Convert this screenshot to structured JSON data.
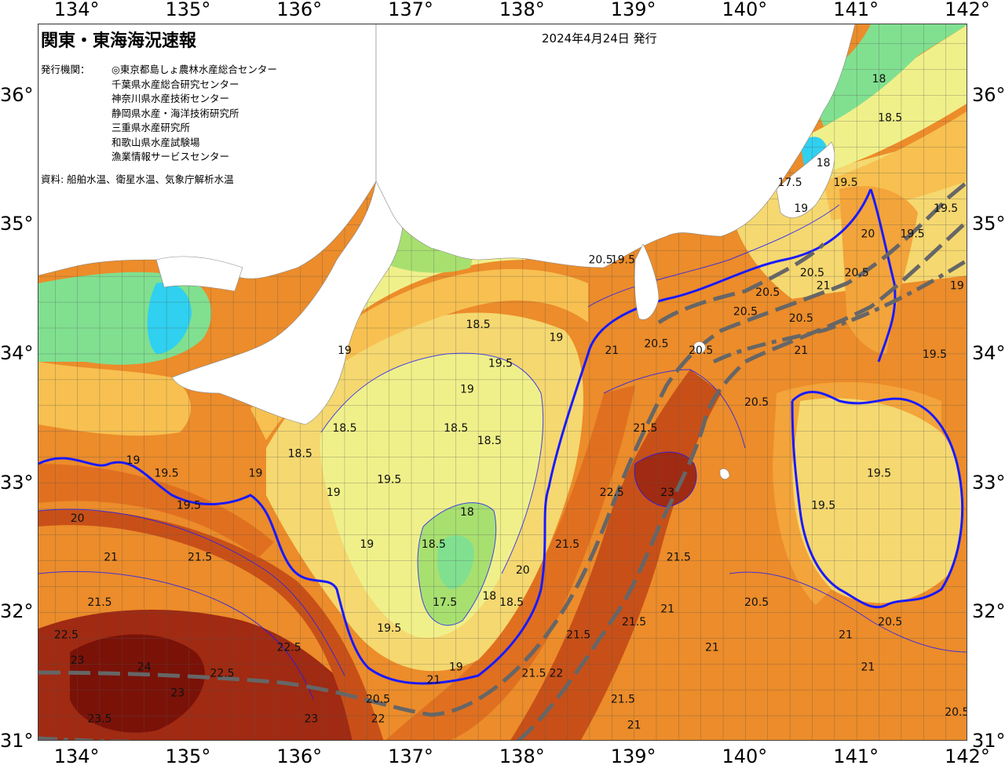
{
  "title": "関東・東海海況速報",
  "issue_date": "2024年4月24日 発行",
  "agencies_label": "発行機関：",
  "agencies": [
    "◎東京都島しょ農林水産総合センター",
    "千葉県水産総合研究センター",
    "神奈川県水産技術センター",
    "静岡県水産・海洋技術研究所",
    "三重県水産研究所",
    "和歌山県水産試験場",
    "漁業情報サービスセンター"
  ],
  "sources": "資料: 船舶水温、衛星水温、気象庁解析水温",
  "lon_labels": [
    "134°",
    "135°",
    "136°",
    "137°",
    "138°",
    "139°",
    "140°",
    "141°",
    "142°"
  ],
  "lat_labels": [
    "36°",
    "35°",
    "34°",
    "33°",
    "32°",
    "31°"
  ],
  "colors": {
    "land": "#ffffff",
    "c17": "#30d0f0",
    "c175": "#80e090",
    "c18": "#a8e070",
    "c185": "#f0f08a",
    "c19": "#f5d870",
    "c195": "#f7c050",
    "c20": "#f3a43a",
    "c205": "#ec8c2a",
    "c21": "#e07020",
    "c22": "#c85018",
    "c23": "#a02a12",
    "c24": "#7a1208",
    "isotherm": "#1a1aff",
    "kuroshio": "#666666"
  },
  "isotherm_labels": [
    {
      "text": "19",
      "lon": 134.5,
      "lat": 33.15
    },
    {
      "text": "19.5",
      "lon": 134.8,
      "lat": 33.05
    },
    {
      "text": "19.5",
      "lon": 135.0,
      "lat": 32.8
    },
    {
      "text": "20",
      "lon": 134.0,
      "lat": 32.7
    },
    {
      "text": "21",
      "lon": 134.3,
      "lat": 32.4
    },
    {
      "text": "21.5",
      "lon": 135.1,
      "lat": 32.4
    },
    {
      "text": "21.5",
      "lon": 134.2,
      "lat": 32.05
    },
    {
      "text": "22.5",
      "lon": 133.9,
      "lat": 31.8
    },
    {
      "text": "23",
      "lon": 134.0,
      "lat": 31.6
    },
    {
      "text": "24",
      "lon": 134.6,
      "lat": 31.55
    },
    {
      "text": "23",
      "lon": 134.9,
      "lat": 31.35
    },
    {
      "text": "22.5",
      "lon": 135.3,
      "lat": 31.5
    },
    {
      "text": "22.5",
      "lon": 135.9,
      "lat": 31.7
    },
    {
      "text": "23.5",
      "lon": 134.2,
      "lat": 31.15
    },
    {
      "text": "23",
      "lon": 136.1,
      "lat": 31.15
    },
    {
      "text": "19",
      "lon": 135.6,
      "lat": 33.05
    },
    {
      "text": "18.5",
      "lon": 136.0,
      "lat": 33.2
    },
    {
      "text": "18.5",
      "lon": 136.4,
      "lat": 33.4
    },
    {
      "text": "19",
      "lon": 136.3,
      "lat": 32.9
    },
    {
      "text": "19",
      "lon": 136.6,
      "lat": 32.5
    },
    {
      "text": "19.5",
      "lon": 136.8,
      "lat": 33.0
    },
    {
      "text": "18.5",
      "lon": 137.4,
      "lat": 33.4
    },
    {
      "text": "18.5",
      "lon": 137.7,
      "lat": 33.3
    },
    {
      "text": "18",
      "lon": 137.5,
      "lat": 32.75
    },
    {
      "text": "18.5",
      "lon": 137.2,
      "lat": 32.5
    },
    {
      "text": "17.5",
      "lon": 137.3,
      "lat": 32.05
    },
    {
      "text": "18",
      "lon": 137.7,
      "lat": 32.1
    },
    {
      "text": "18.5",
      "lon": 137.9,
      "lat": 32.05
    },
    {
      "text": "19.5",
      "lon": 136.8,
      "lat": 31.85
    },
    {
      "text": "19",
      "lon": 137.5,
      "lat": 33.7
    },
    {
      "text": "19.5",
      "lon": 137.8,
      "lat": 33.9
    },
    {
      "text": "18.5",
      "lon": 137.6,
      "lat": 34.2
    },
    {
      "text": "19",
      "lon": 136.4,
      "lat": 34.0
    },
    {
      "text": "19",
      "lon": 138.3,
      "lat": 34.1
    },
    {
      "text": "20",
      "lon": 138.0,
      "lat": 32.3
    },
    {
      "text": "21.5",
      "lon": 138.4,
      "lat": 32.5
    },
    {
      "text": "21",
      "lon": 138.8,
      "lat": 34.0
    },
    {
      "text": "20.5",
      "lon": 139.2,
      "lat": 34.05
    },
    {
      "text": "21.5",
      "lon": 139.1,
      "lat": 33.4
    },
    {
      "text": "22.5",
      "lon": 138.8,
      "lat": 32.9
    },
    {
      "text": "23",
      "lon": 139.3,
      "lat": 32.9
    },
    {
      "text": "21.5",
      "lon": 139.4,
      "lat": 32.4
    },
    {
      "text": "20.5",
      "lon": 138.7,
      "lat": 34.7
    },
    {
      "text": "19.5",
      "lon": 138.9,
      "lat": 34.7
    },
    {
      "text": "20.5",
      "lon": 139.6,
      "lat": 34.0
    },
    {
      "text": "20.5",
      "lon": 140.0,
      "lat": 34.3
    },
    {
      "text": "20.5",
      "lon": 140.1,
      "lat": 33.6
    },
    {
      "text": "21",
      "lon": 140.5,
      "lat": 34.0
    },
    {
      "text": "20.5",
      "lon": 140.5,
      "lat": 34.25
    },
    {
      "text": "20.5",
      "lon": 140.6,
      "lat": 34.6
    },
    {
      "text": "21",
      "lon": 140.7,
      "lat": 34.5
    },
    {
      "text": "20.5",
      "lon": 141.0,
      "lat": 34.6
    },
    {
      "text": "19.5",
      "lon": 141.5,
      "lat": 34.9
    },
    {
      "text": "19",
      "lon": 141.9,
      "lat": 34.5
    },
    {
      "text": "19.5",
      "lon": 141.8,
      "lat": 35.1
    },
    {
      "text": "19.5",
      "lon": 141.7,
      "lat": 33.97
    },
    {
      "text": "20.5",
      "lon": 140.2,
      "lat": 34.45
    },
    {
      "text": "19.5",
      "lon": 141.2,
      "lat": 33.05
    },
    {
      "text": "19.5",
      "lon": 140.7,
      "lat": 32.8
    },
    {
      "text": "20.5",
      "lon": 140.1,
      "lat": 32.05
    },
    {
      "text": "21",
      "lon": 139.3,
      "lat": 32.0
    },
    {
      "text": "21",
      "lon": 140.9,
      "lat": 31.8
    },
    {
      "text": "20.5",
      "lon": 141.3,
      "lat": 31.9
    },
    {
      "text": "21",
      "lon": 139.7,
      "lat": 31.7
    },
    {
      "text": "21",
      "lon": 141.1,
      "lat": 31.55
    },
    {
      "text": "20.5",
      "lon": 141.9,
      "lat": 31.2
    },
    {
      "text": "21.5",
      "lon": 138.5,
      "lat": 31.8
    },
    {
      "text": "21.5",
      "lon": 139.0,
      "lat": 31.9
    },
    {
      "text": "22",
      "lon": 138.3,
      "lat": 31.5
    },
    {
      "text": "21.5",
      "lon": 138.1,
      "lat": 31.5
    },
    {
      "text": "21",
      "lon": 139.0,
      "lat": 31.1
    },
    {
      "text": "21.5",
      "lon": 138.9,
      "lat": 31.3
    },
    {
      "text": "21",
      "lon": 137.2,
      "lat": 31.45
    },
    {
      "text": "19",
      "lon": 137.4,
      "lat": 31.55
    },
    {
      "text": "20.5",
      "lon": 136.7,
      "lat": 31.3
    },
    {
      "text": "22",
      "lon": 136.7,
      "lat": 31.15
    },
    {
      "text": "18",
      "lon": 141.2,
      "lat": 36.1
    },
    {
      "text": "18.5",
      "lon": 141.3,
      "lat": 35.8
    },
    {
      "text": "18",
      "lon": 140.7,
      "lat": 35.45
    },
    {
      "text": "17.5",
      "lon": 140.4,
      "lat": 35.3
    },
    {
      "text": "19",
      "lon": 140.5,
      "lat": 35.1
    },
    {
      "text": "19.5",
      "lon": 140.9,
      "lat": 35.3
    },
    {
      "text": "20",
      "lon": 141.1,
      "lat": 34.9
    }
  ]
}
